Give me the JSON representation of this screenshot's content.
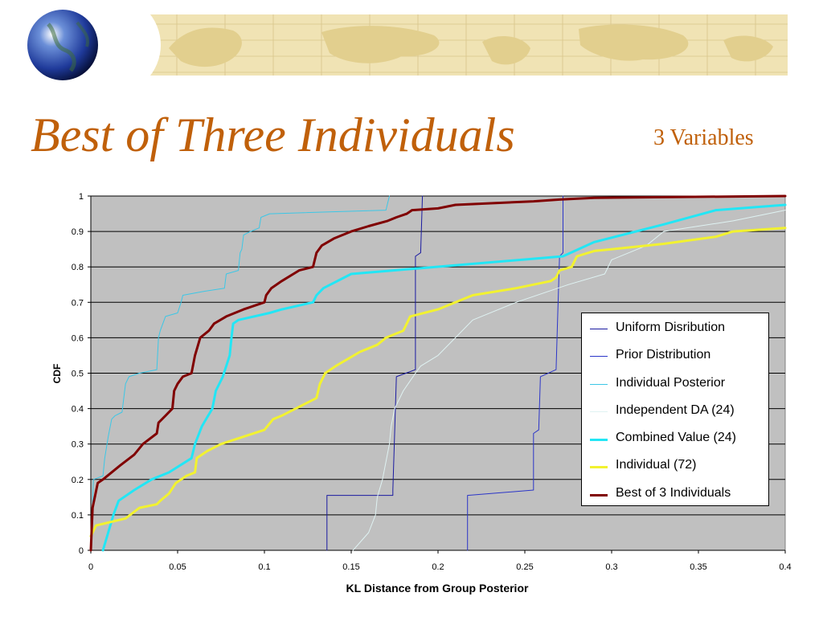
{
  "slide": {
    "title": "Best of Three Individuals",
    "subtitle": "3 Variables"
  },
  "colors": {
    "title": "#c0600a",
    "plot_background": "#c0c0c0",
    "gridline": "#000000",
    "banner_background": "#f0e3b4",
    "banner_land": "#e2cf8e"
  },
  "icons": {
    "banner_globe": "globe-icon",
    "banner_map": "world-map-icon"
  },
  "chart_data": {
    "type": "line",
    "xlabel": "KL Distance from Group Posterior",
    "ylabel": "CDF",
    "xlim": [
      0,
      0.4
    ],
    "ylim": [
      0,
      1
    ],
    "x_ticks": [
      "0",
      "0.05",
      "0.1",
      "0.15",
      "0.2",
      "0.25",
      "0.3",
      "0.35",
      "0.4"
    ],
    "y_ticks": [
      "0",
      "0.1",
      "0.2",
      "0.3",
      "0.4",
      "0.5",
      "0.6",
      "0.7",
      "0.8",
      "0.9",
      "1"
    ],
    "grid": "horizontal",
    "legend_position": "right",
    "series": [
      {
        "name": "Uniform Disribution",
        "color": "#1a1aa0",
        "width": 1,
        "points": [
          [
            0.136,
            0
          ],
          [
            0.136,
            0.155
          ],
          [
            0.174,
            0.155
          ],
          [
            0.174,
            0.17
          ],
          [
            0.175,
            0.33
          ],
          [
            0.176,
            0.49
          ],
          [
            0.187,
            0.51
          ],
          [
            0.187,
            0.83
          ],
          [
            0.19,
            0.84
          ],
          [
            0.191,
            1
          ]
        ]
      },
      {
        "name": "Prior Distribution",
        "color": "#2b35c8",
        "width": 1,
        "points": [
          [
            0.217,
            0
          ],
          [
            0.217,
            0.155
          ],
          [
            0.255,
            0.17
          ],
          [
            0.255,
            0.33
          ],
          [
            0.258,
            0.34
          ],
          [
            0.259,
            0.49
          ],
          [
            0.268,
            0.51
          ],
          [
            0.269,
            0.67
          ],
          [
            0.27,
            0.83
          ],
          [
            0.272,
            0.84
          ],
          [
            0.272,
            1
          ]
        ]
      },
      {
        "name": "Individual Posterior",
        "color": "#3cc7e6",
        "width": 1,
        "points": [
          [
            0,
            0
          ],
          [
            0.0015,
            0.2
          ],
          [
            0.007,
            0.21
          ],
          [
            0.008,
            0.26
          ],
          [
            0.01,
            0.32
          ],
          [
            0.012,
            0.37
          ],
          [
            0.014,
            0.38
          ],
          [
            0.018,
            0.39
          ],
          [
            0.019,
            0.43
          ],
          [
            0.02,
            0.47
          ],
          [
            0.022,
            0.49
          ],
          [
            0.028,
            0.5
          ],
          [
            0.038,
            0.51
          ],
          [
            0.039,
            0.6
          ],
          [
            0.04,
            0.62
          ],
          [
            0.043,
            0.66
          ],
          [
            0.05,
            0.67
          ],
          [
            0.052,
            0.7
          ],
          [
            0.053,
            0.72
          ],
          [
            0.064,
            0.73
          ],
          [
            0.077,
            0.74
          ],
          [
            0.078,
            0.78
          ],
          [
            0.085,
            0.79
          ],
          [
            0.086,
            0.84
          ],
          [
            0.087,
            0.85
          ],
          [
            0.088,
            0.89
          ],
          [
            0.092,
            0.9
          ],
          [
            0.097,
            0.91
          ],
          [
            0.098,
            0.94
          ],
          [
            0.103,
            0.95
          ],
          [
            0.17,
            0.96
          ],
          [
            0.172,
            1
          ]
        ]
      },
      {
        "name": "Independent DA (24)",
        "color": "#dff2f2",
        "width": 1,
        "points": [
          [
            0.151,
            0
          ],
          [
            0.16,
            0.05
          ],
          [
            0.164,
            0.1
          ],
          [
            0.165,
            0.15
          ],
          [
            0.168,
            0.2
          ],
          [
            0.17,
            0.25
          ],
          [
            0.172,
            0.3
          ],
          [
            0.173,
            0.35
          ],
          [
            0.175,
            0.4
          ],
          [
            0.177,
            0.42
          ],
          [
            0.18,
            0.45
          ],
          [
            0.187,
            0.5
          ],
          [
            0.19,
            0.52
          ],
          [
            0.2,
            0.55
          ],
          [
            0.21,
            0.6
          ],
          [
            0.22,
            0.65
          ],
          [
            0.245,
            0.7
          ],
          [
            0.275,
            0.75
          ],
          [
            0.296,
            0.78
          ],
          [
            0.3,
            0.82
          ],
          [
            0.32,
            0.86
          ],
          [
            0.33,
            0.9
          ],
          [
            0.37,
            0.93
          ],
          [
            0.4,
            0.96
          ]
        ]
      },
      {
        "name": "Combined Value (24)",
        "color": "#22e6f5",
        "width": 3,
        "points": [
          [
            0.007,
            0
          ],
          [
            0.01,
            0.05
          ],
          [
            0.013,
            0.1
          ],
          [
            0.016,
            0.14
          ],
          [
            0.025,
            0.17
          ],
          [
            0.035,
            0.2
          ],
          [
            0.045,
            0.22
          ],
          [
            0.058,
            0.26
          ],
          [
            0.06,
            0.3
          ],
          [
            0.064,
            0.35
          ],
          [
            0.07,
            0.4
          ],
          [
            0.072,
            0.45
          ],
          [
            0.076,
            0.49
          ],
          [
            0.078,
            0.52
          ],
          [
            0.08,
            0.55
          ],
          [
            0.081,
            0.6
          ],
          [
            0.082,
            0.64
          ],
          [
            0.085,
            0.65
          ],
          [
            0.103,
            0.67
          ],
          [
            0.11,
            0.68
          ],
          [
            0.128,
            0.7
          ],
          [
            0.13,
            0.72
          ],
          [
            0.134,
            0.74
          ],
          [
            0.15,
            0.78
          ],
          [
            0.272,
            0.83
          ],
          [
            0.29,
            0.87
          ],
          [
            0.33,
            0.92
          ],
          [
            0.36,
            0.96
          ],
          [
            0.4,
            0.975
          ]
        ]
      },
      {
        "name": "Individual (72)",
        "color": "#f2f230",
        "width": 3,
        "points": [
          [
            0,
            0.04
          ],
          [
            0.003,
            0.07
          ],
          [
            0.02,
            0.09
          ],
          [
            0.028,
            0.12
          ],
          [
            0.038,
            0.13
          ],
          [
            0.04,
            0.14
          ],
          [
            0.045,
            0.16
          ],
          [
            0.049,
            0.19
          ],
          [
            0.055,
            0.21
          ],
          [
            0.06,
            0.22
          ],
          [
            0.061,
            0.26
          ],
          [
            0.067,
            0.28
          ],
          [
            0.075,
            0.3
          ],
          [
            0.1,
            0.34
          ],
          [
            0.105,
            0.37
          ],
          [
            0.11,
            0.38
          ],
          [
            0.118,
            0.4
          ],
          [
            0.126,
            0.42
          ],
          [
            0.13,
            0.43
          ],
          [
            0.132,
            0.47
          ],
          [
            0.135,
            0.5
          ],
          [
            0.141,
            0.52
          ],
          [
            0.155,
            0.56
          ],
          [
            0.165,
            0.58
          ],
          [
            0.17,
            0.6
          ],
          [
            0.18,
            0.62
          ],
          [
            0.184,
            0.66
          ],
          [
            0.2,
            0.68
          ],
          [
            0.22,
            0.72
          ],
          [
            0.245,
            0.74
          ],
          [
            0.265,
            0.76
          ],
          [
            0.268,
            0.77
          ],
          [
            0.27,
            0.79
          ],
          [
            0.277,
            0.8
          ],
          [
            0.28,
            0.83
          ],
          [
            0.29,
            0.845
          ],
          [
            0.33,
            0.865
          ],
          [
            0.36,
            0.885
          ],
          [
            0.37,
            0.9
          ],
          [
            0.4,
            0.91
          ]
        ]
      },
      {
        "name": "Best of 3 Individuals",
        "color": "#800000",
        "width": 3,
        "points": [
          [
            0,
            0
          ],
          [
            0.001,
            0.12
          ],
          [
            0.004,
            0.19
          ],
          [
            0.007,
            0.2
          ],
          [
            0.017,
            0.24
          ],
          [
            0.025,
            0.27
          ],
          [
            0.03,
            0.3
          ],
          [
            0.038,
            0.33
          ],
          [
            0.039,
            0.36
          ],
          [
            0.043,
            0.38
          ],
          [
            0.047,
            0.4
          ],
          [
            0.048,
            0.45
          ],
          [
            0.05,
            0.47
          ],
          [
            0.053,
            0.49
          ],
          [
            0.058,
            0.5
          ],
          [
            0.06,
            0.55
          ],
          [
            0.063,
            0.6
          ],
          [
            0.068,
            0.62
          ],
          [
            0.071,
            0.64
          ],
          [
            0.078,
            0.66
          ],
          [
            0.088,
            0.68
          ],
          [
            0.094,
            0.69
          ],
          [
            0.1,
            0.7
          ],
          [
            0.101,
            0.72
          ],
          [
            0.104,
            0.74
          ],
          [
            0.11,
            0.76
          ],
          [
            0.12,
            0.79
          ],
          [
            0.128,
            0.8
          ],
          [
            0.13,
            0.84
          ],
          [
            0.133,
            0.86
          ],
          [
            0.14,
            0.88
          ],
          [
            0.15,
            0.9
          ],
          [
            0.16,
            0.915
          ],
          [
            0.171,
            0.93
          ],
          [
            0.176,
            0.94
          ],
          [
            0.182,
            0.95
          ],
          [
            0.185,
            0.96
          ],
          [
            0.2,
            0.965
          ],
          [
            0.21,
            0.975
          ],
          [
            0.255,
            0.985
          ],
          [
            0.27,
            0.99
          ],
          [
            0.29,
            0.995
          ],
          [
            0.4,
            1
          ]
        ]
      }
    ]
  }
}
